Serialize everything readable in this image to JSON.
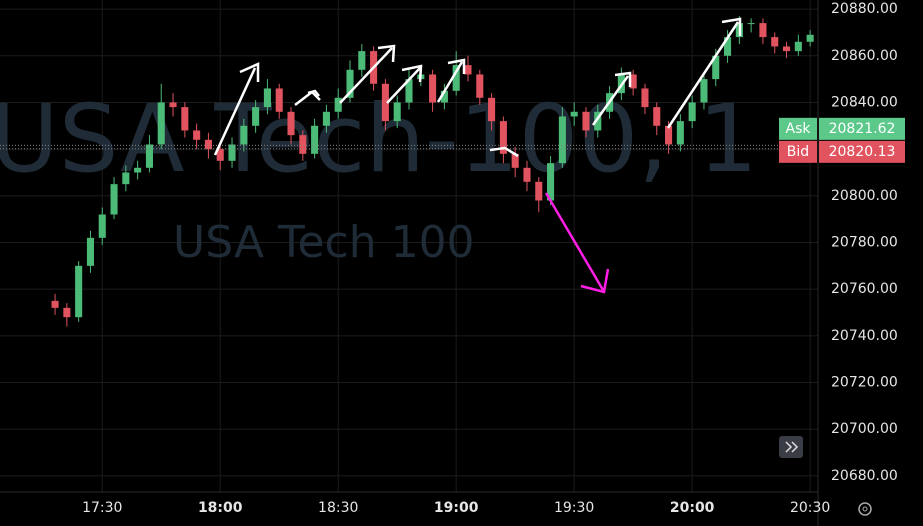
{
  "chart_data": {
    "type": "candlestick",
    "watermark": "USA Tech-100, 1",
    "watermark_subtitle": "USA Tech 100",
    "x": [
      "17:18",
      "17:21",
      "17:24",
      "17:27",
      "17:30",
      "17:33",
      "17:36",
      "17:39",
      "17:42",
      "17:45",
      "17:48",
      "17:51",
      "17:54",
      "17:57",
      "18:00",
      "18:03",
      "18:06",
      "18:09",
      "18:12",
      "18:15",
      "18:18",
      "18:21",
      "18:24",
      "18:27",
      "18:30",
      "18:33",
      "18:36",
      "18:39",
      "18:42",
      "18:45",
      "18:48",
      "18:51",
      "18:54",
      "18:57",
      "19:00",
      "19:03",
      "19:06",
      "19:09",
      "19:12",
      "19:15",
      "19:18",
      "19:21",
      "19:24",
      "19:27",
      "19:30",
      "19:33",
      "19:36",
      "19:39",
      "19:42",
      "19:45",
      "19:48",
      "19:51",
      "19:54",
      "19:57",
      "20:00",
      "20:03",
      "20:06",
      "20:09",
      "20:12",
      "20:15",
      "20:18",
      "20:21",
      "20:24",
      "20:27",
      "20:30"
    ],
    "open": [
      20755,
      20752,
      20748,
      20770,
      20782,
      20792,
      20805,
      20810,
      20812,
      20822,
      20840,
      20838,
      20828,
      20824,
      20820,
      20815,
      20822,
      20830,
      20838,
      20846,
      20836,
      20826,
      20818,
      20830,
      20836,
      20842,
      20854,
      20862,
      20848,
      20832,
      20840,
      20850,
      20852,
      20840,
      20845,
      20856,
      20852,
      20842,
      20832,
      20818,
      20812,
      20806,
      20798,
      20814,
      20834,
      20836,
      20828,
      20836,
      20844,
      20852,
      20846,
      20838,
      20830,
      20822,
      20832,
      20840,
      20850,
      20860,
      20868,
      20874,
      20874,
      20868,
      20864,
      20862,
      20866
    ],
    "high": [
      20758,
      20754,
      20772,
      20785,
      20795,
      20808,
      20813,
      20815,
      20826,
      20848,
      20844,
      20840,
      20831,
      20827,
      20823,
      20825,
      20833,
      20841,
      20850,
      20848,
      20838,
      20828,
      20833,
      20839,
      20846,
      20858,
      20865,
      20864,
      20850,
      20843,
      20854,
      20856,
      20854,
      20848,
      20862,
      20860,
      20854,
      20844,
      20834,
      20821,
      20815,
      20808,
      20817,
      20838,
      20840,
      20838,
      20839,
      20847,
      20855,
      20854,
      20848,
      20840,
      20832,
      20835,
      20843,
      20853,
      20863,
      20871,
      20877,
      20876,
      20876,
      20870,
      20866,
      20869,
      20871
    ],
    "low": [
      20749,
      20744,
      20746,
      20767,
      20779,
      20790,
      20802,
      20807,
      20810,
      20820,
      20834,
      20825,
      20820,
      20816,
      20811,
      20812,
      20819,
      20827,
      20835,
      20833,
      20822,
      20815,
      20816,
      20827,
      20833,
      20840,
      20851,
      20845,
      20828,
      20829,
      20837,
      20847,
      20836,
      20837,
      20843,
      20849,
      20839,
      20828,
      20814,
      20808,
      20802,
      20793,
      20796,
      20812,
      20830,
      20825,
      20825,
      20833,
      20841,
      20843,
      20835,
      20826,
      20818,
      20819,
      20829,
      20837,
      20847,
      20857,
      20865,
      20870,
      20865,
      20861,
      20859,
      20860,
      20864
    ],
    "close": [
      20752,
      20748,
      20770,
      20782,
      20792,
      20805,
      20810,
      20812,
      20822,
      20840,
      20838,
      20828,
      20824,
      20820,
      20815,
      20822,
      20830,
      20838,
      20846,
      20836,
      20826,
      20818,
      20830,
      20836,
      20842,
      20854,
      20862,
      20848,
      20832,
      20840,
      20850,
      20852,
      20840,
      20845,
      20856,
      20852,
      20842,
      20832,
      20818,
      20812,
      20806,
      20798,
      20814,
      20834,
      20836,
      20828,
      20836,
      20844,
      20852,
      20846,
      20838,
      20830,
      20822,
      20832,
      20840,
      20850,
      20860,
      20868,
      20874,
      20874,
      20868,
      20864,
      20862,
      20866,
      20869
    ],
    "up_color": "#4cbb78",
    "down_color": "#e0535f",
    "xlim": [
      "17:04",
      "20:32"
    ],
    "xticks": [
      "17:30",
      "18:00",
      "18:30",
      "19:00",
      "19:30",
      "20:00",
      "20:30"
    ],
    "ylim": [
      20673.1,
      20883.9
    ],
    "yticks": [
      {
        "value": 20680,
        "label": "20680.00"
      },
      {
        "value": 20700,
        "label": "20700.00"
      },
      {
        "value": 20720,
        "label": "20720.00"
      },
      {
        "value": 20740,
        "label": "20740.00"
      },
      {
        "value": 20760,
        "label": "20760.00"
      },
      {
        "value": 20780,
        "label": "20780.00"
      },
      {
        "value": 20800,
        "label": "20800.00"
      },
      {
        "value": 20820,
        "label": "20820.00"
      },
      {
        "value": 20840,
        "label": "20840.00"
      },
      {
        "value": 20860,
        "label": "20860.00"
      },
      {
        "value": 20880,
        "label": "20880.00"
      }
    ],
    "grid": true,
    "ask": {
      "label": "Ask",
      "value": 20821.62,
      "value_label": "20821.62",
      "color": "#5cc98a"
    },
    "bid": {
      "label": "Bid",
      "value": 20820.13,
      "value_label": "20820.13",
      "color": "#e0535f"
    }
  }
}
